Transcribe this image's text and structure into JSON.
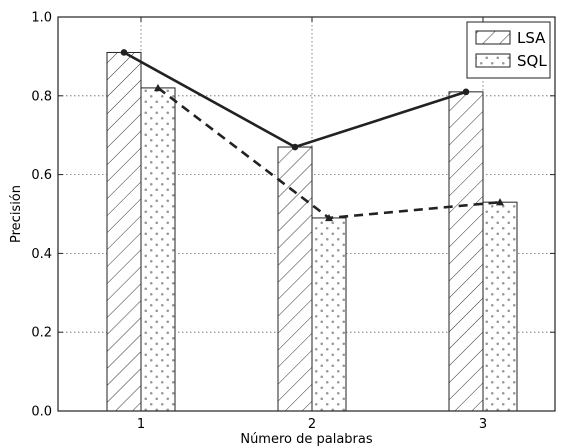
{
  "chart_data": {
    "type": "bar",
    "categories": [
      "1",
      "2",
      "3"
    ],
    "series": [
      {
        "name": "LSA",
        "values": [
          0.91,
          0.67,
          0.81
        ],
        "pattern": "hatch",
        "line": "solid",
        "marker": "circle"
      },
      {
        "name": "SQL",
        "values": [
          0.82,
          0.49,
          0.53
        ],
        "pattern": "dots",
        "line": "dashed",
        "marker": "triangle"
      }
    ],
    "xlabel": "Número de palabras",
    "ylabel": "Precisión",
    "ylim": [
      0.0,
      1.0
    ],
    "yticks": [
      "0.0",
      "0.2",
      "0.4",
      "0.6",
      "0.8",
      "1.0"
    ],
    "grid": true,
    "legend": "top-right",
    "colors": {
      "ink": "#222222",
      "bar_fill": "#ffffff",
      "grid": "#666666"
    }
  }
}
